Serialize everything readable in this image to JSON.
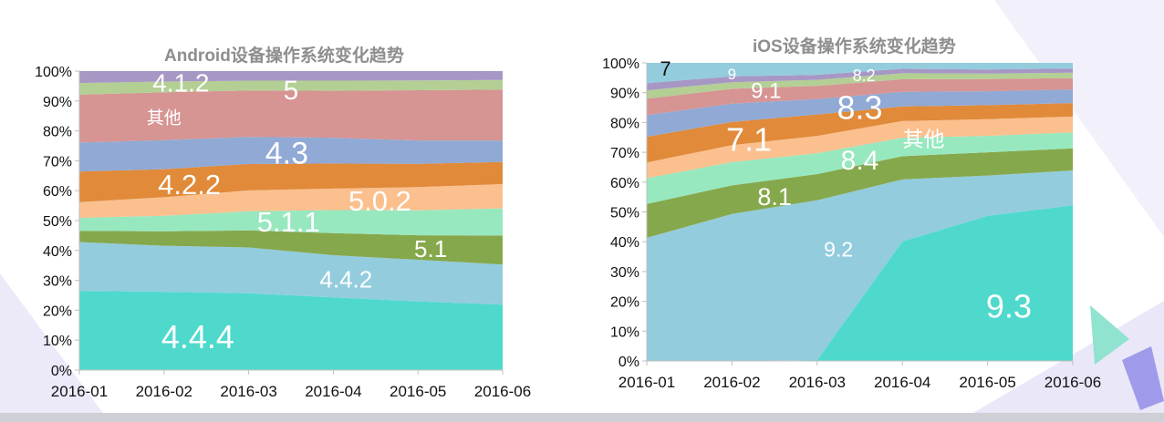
{
  "colors": {
    "4.4.4": "#4fd9cc",
    "4.4.2": "#93ccdd",
    "5.1": "#86a84c",
    "5.1.1": "#97e8bf",
    "5.0.2": "#fbc08e",
    "4.2.2": "#e08a3a",
    "4.3": "#90a9d5",
    "其他": "#d69493",
    "5": "#b3cf94",
    "4.1.2": "#a797c5",
    "9.3": "#4fd9cc",
    "9.2": "#93ccdd",
    "8.1": "#86a84c",
    "8.4": "#97e8bf",
    "ios-其他": "#fbc08e",
    "7.1": "#e08a3a",
    "8.3": "#90a9d5",
    "9.1": "#d69493",
    "9": "#b3cf94",
    "8.2": "#a797c5",
    "7": "#93ccdd"
  },
  "chart_data": [
    {
      "type": "area",
      "stacked": true,
      "title": "Android设备操作系统变化趋势",
      "categories": [
        "2016-01",
        "2016-02",
        "2016-03",
        "2016-04",
        "2016-05",
        "2016-06"
      ],
      "ylim": [
        0,
        100
      ],
      "yticks": [
        "0%",
        "10%",
        "20%",
        "30%",
        "40%",
        "50%",
        "60%",
        "70%",
        "80%",
        "90%",
        "100%"
      ],
      "series": [
        {
          "name": "4.4.4",
          "values": [
            26.5,
            26.2,
            25.7,
            24.3,
            23.0,
            21.9
          ]
        },
        {
          "name": "4.4.2",
          "values": [
            16.3,
            15.4,
            15.3,
            14.1,
            13.9,
            13.4
          ]
        },
        {
          "name": "5.1",
          "values": [
            3.8,
            4.8,
            5.7,
            7.4,
            8.2,
            9.7
          ]
        },
        {
          "name": "5.1.1",
          "values": [
            4.3,
            5.2,
            6.4,
            7.7,
            8.3,
            9.1
          ]
        },
        {
          "name": "5.0.2",
          "values": [
            5.3,
            6.2,
            7.0,
            7.2,
            7.8,
            8.1
          ]
        },
        {
          "name": "4.2.2",
          "values": [
            10.2,
            9.4,
            8.8,
            8.4,
            7.8,
            7.4
          ]
        },
        {
          "name": "4.3",
          "values": [
            9.7,
            9.7,
            9.1,
            8.6,
            7.8,
            7.2
          ]
        },
        {
          "name": "其他",
          "values": [
            16.0,
            16.0,
            15.5,
            15.7,
            16.8,
            17.0
          ]
        },
        {
          "name": "5",
          "values": [
            3.9,
            3.6,
            3.3,
            3.4,
            3.3,
            3.2
          ]
        },
        {
          "name": "4.1.2",
          "values": [
            4.0,
            3.5,
            3.2,
            3.2,
            3.1,
            3.0
          ]
        }
      ],
      "labels": [
        {
          "text": "4.4.4",
          "x": 1.4,
          "y": 11.3,
          "size": 36
        },
        {
          "text": "4.4.2",
          "x": 3.15,
          "y": 30.4,
          "size": 26
        },
        {
          "text": "5.1",
          "x": 4.15,
          "y": 40.6,
          "size": 26
        },
        {
          "text": "5.1.1",
          "x": 2.47,
          "y": 49.8,
          "size": 31
        },
        {
          "text": "5.0.2",
          "x": 3.55,
          "y": 56.8,
          "size": 31
        },
        {
          "text": "4.2.2",
          "x": 1.3,
          "y": 62.2,
          "size": 31
        },
        {
          "text": "4.3",
          "x": 2.45,
          "y": 72.8,
          "size": 34
        },
        {
          "text": "其他",
          "x": 1.0,
          "y": 84.5,
          "size": 19
        },
        {
          "text": "5",
          "x": 2.5,
          "y": 93.9,
          "size": 30
        },
        {
          "text": "4.1.2",
          "x": 1.2,
          "y": 96.2,
          "size": 28
        }
      ]
    },
    {
      "type": "area",
      "stacked": true,
      "title": "iOS设备操作系统变化趋势",
      "categories": [
        "2016-01",
        "2016-02",
        "2016-03",
        "2016-04",
        "2016-05",
        "2016-06"
      ],
      "ylim": [
        0,
        100
      ],
      "yticks": [
        "0%",
        "10%",
        "20%",
        "30%",
        "40%",
        "50%",
        "60%",
        "70%",
        "80%",
        "90%",
        "100%"
      ],
      "series": [
        {
          "name": "9.3",
          "values": [
            0,
            0,
            0.3,
            40.1,
            48.7,
            52.2
          ]
        },
        {
          "name": "9.2",
          "values": [
            41.3,
            49.3,
            53.6,
            20.8,
            13.5,
            11.7
          ]
        },
        {
          "name": "8.1",
          "values": [
            11.4,
            9.6,
            8.8,
            7.8,
            7.8,
            7.4
          ]
        },
        {
          "name": "8.4",
          "values": [
            8.6,
            7.8,
            7.0,
            6.2,
            5.5,
            5.4
          ]
        },
        {
          "name": "其他",
          "values": [
            5.3,
            5.7,
            5.8,
            5.6,
            5.6,
            5.3
          ]
        },
        {
          "name": "7.1",
          "values": [
            8.6,
            7.8,
            7.2,
            4.9,
            4.7,
            4.5
          ]
        },
        {
          "name": "8.3",
          "values": [
            7.3,
            6.1,
            5.2,
            4.9,
            4.7,
            4.6
          ]
        },
        {
          "name": "9.1",
          "values": [
            5.5,
            5.0,
            4.4,
            4.2,
            4.1,
            3.8
          ]
        },
        {
          "name": "9",
          "values": [
            2.8,
            2.2,
            2.0,
            2.0,
            1.8,
            1.8
          ]
        },
        {
          "name": "8.2",
          "values": [
            2.4,
            2.0,
            1.7,
            1.5,
            1.4,
            1.4
          ]
        },
        {
          "name": "7",
          "values": [
            6.8,
            4.5,
            4.0,
            2.0,
            2.2,
            1.9
          ]
        }
      ],
      "labels": [
        {
          "text": "9.3",
          "x": 4.25,
          "y": 18.5,
          "size": 36
        },
        {
          "text": "9.2",
          "x": 2.25,
          "y": 37.5,
          "size": 23
        },
        {
          "text": "8.1",
          "x": 1.5,
          "y": 55.3,
          "size": 27
        },
        {
          "text": "8.4",
          "x": 2.5,
          "y": 67.5,
          "size": 30
        },
        {
          "text": "其他",
          "x": 3.25,
          "y": 74.5,
          "size": 23
        },
        {
          "text": "7.1",
          "x": 1.2,
          "y": 74.5,
          "size": 36
        },
        {
          "text": "8.3",
          "x": 2.5,
          "y": 85.1,
          "size": 36
        },
        {
          "text": "9.1",
          "x": 1.4,
          "y": 90.8,
          "size": 24
        },
        {
          "text": "9",
          "x": 1.0,
          "y": 96.4,
          "size": 17
        },
        {
          "text": "8.2",
          "x": 2.55,
          "y": 95.8,
          "size": 18
        },
        {
          "text": "7",
          "x": 0.22,
          "y": 98.1,
          "size": 22
        }
      ]
    }
  ]
}
